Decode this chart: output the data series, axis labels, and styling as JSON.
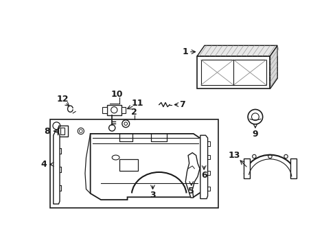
{
  "background_color": "#ffffff",
  "line_color": "#1a1a1a",
  "gray_color": "#888888",
  "light_gray": "#cccccc"
}
